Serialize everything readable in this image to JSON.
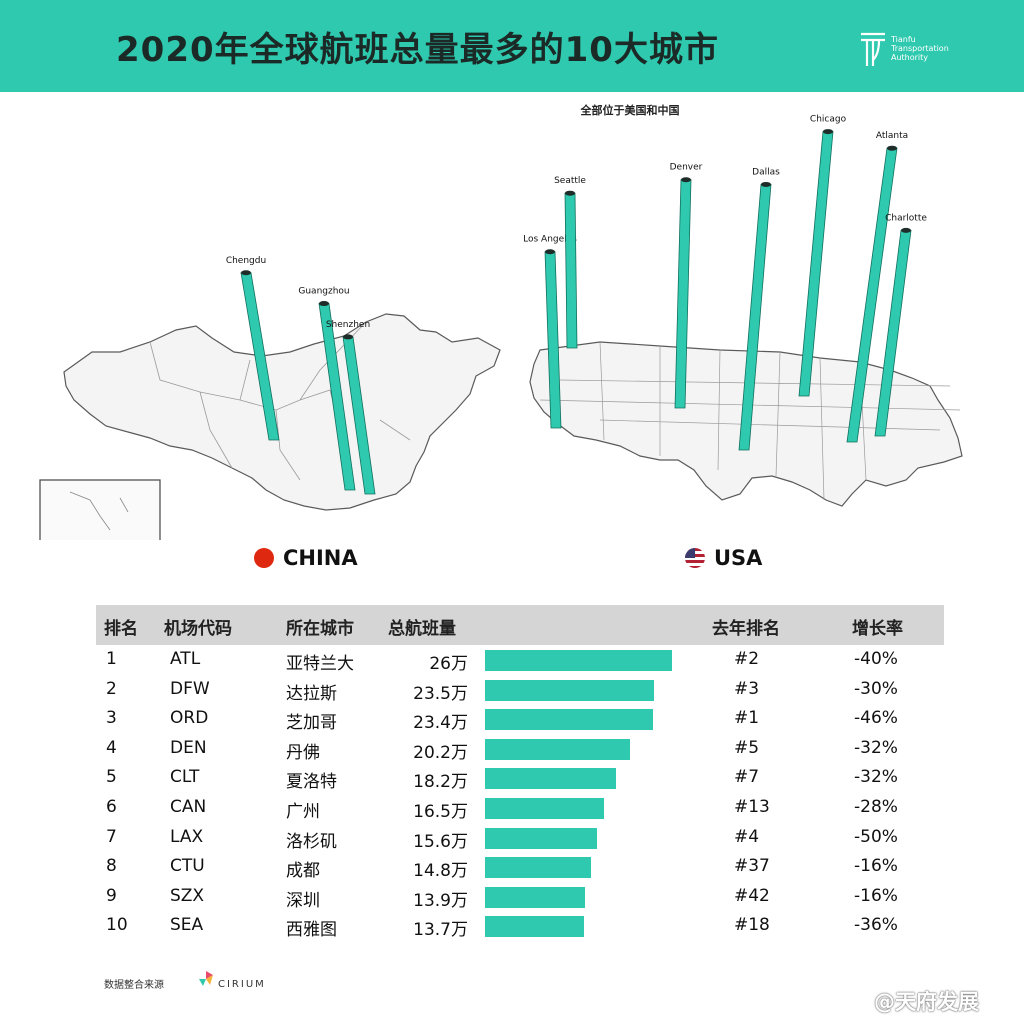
{
  "header": {
    "title": "2020年全球航班总量最多的10大城市",
    "logo_lines": [
      "Tianfu",
      "Transportation",
      "Authority"
    ]
  },
  "subtitle": "全部位于美国和中国",
  "colors": {
    "accent": "#2ec9ae",
    "header_bg": "#2ec9ae",
    "table_header_bg": "#d5d5d5"
  },
  "maps": {
    "china": {
      "label": "CHINA",
      "flag": "china-flag-icon",
      "pillars": [
        {
          "city": "Chengdu"
        },
        {
          "city": "Guangzhou"
        },
        {
          "city": "Shenzhen"
        }
      ]
    },
    "usa": {
      "label": "USA",
      "flag": "usa-flag-icon",
      "pillars": [
        {
          "city": "Los Angeles"
        },
        {
          "city": "Seattle"
        },
        {
          "city": "Denver"
        },
        {
          "city": "Dallas"
        },
        {
          "city": "Chicago"
        },
        {
          "city": "Atlanta"
        },
        {
          "city": "Charlotte"
        }
      ]
    }
  },
  "table": {
    "headers": {
      "rank": "排名",
      "code": "机场代码",
      "city": "所在城市",
      "total": "总航班量",
      "last_rank": "去年排名",
      "growth": "增长率"
    }
  },
  "chart_data": {
    "type": "bar",
    "orientation": "horizontal",
    "unit": "万",
    "rows": [
      {
        "rank": "1",
        "code": "ATL",
        "city": "亚特兰大",
        "value": 26,
        "value_label": "26万",
        "last_rank": "#2",
        "growth": "-40%"
      },
      {
        "rank": "2",
        "code": "DFW",
        "city": "达拉斯",
        "value": 23.5,
        "value_label": "23.5万",
        "last_rank": "#3",
        "growth": "-30%"
      },
      {
        "rank": "3",
        "code": "ORD",
        "city": "芝加哥",
        "value": 23.4,
        "value_label": "23.4万",
        "last_rank": "#1",
        "growth": "-46%"
      },
      {
        "rank": "4",
        "code": "DEN",
        "city": "丹佛",
        "value": 20.2,
        "value_label": "20.2万",
        "last_rank": "#5",
        "growth": "-32%"
      },
      {
        "rank": "5",
        "code": "CLT",
        "city": "夏洛特",
        "value": 18.2,
        "value_label": "18.2万",
        "last_rank": "#7",
        "growth": "-32%"
      },
      {
        "rank": "6",
        "code": "CAN",
        "city": "广州",
        "value": 16.5,
        "value_label": "16.5万",
        "last_rank": "#13",
        "growth": "-28%"
      },
      {
        "rank": "7",
        "code": "LAX",
        "city": "洛杉矶",
        "value": 15.6,
        "value_label": "15.6万",
        "last_rank": "#4",
        "growth": "-50%"
      },
      {
        "rank": "8",
        "code": "CTU",
        "city": "成都",
        "value": 14.8,
        "value_label": "14.8万",
        "last_rank": "#37",
        "growth": "-16%"
      },
      {
        "rank": "9",
        "code": "SZX",
        "city": "深圳",
        "value": 13.9,
        "value_label": "13.9万",
        "last_rank": "#42",
        "growth": "-16%"
      },
      {
        "rank": "10",
        "code": "SEA",
        "city": "西雅图",
        "value": 13.7,
        "value_label": "13.7万",
        "last_rank": "#18",
        "growth": "-36%"
      }
    ],
    "xlim": [
      0,
      26
    ]
  },
  "footer": {
    "source_label": "数据整合来源",
    "source_brand": "CIRIUM",
    "watermark": "@天府发展"
  }
}
